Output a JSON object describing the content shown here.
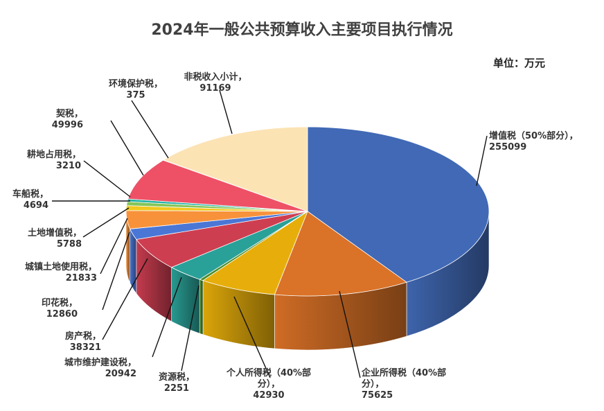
{
  "chart_data": {
    "type": "pie",
    "title": "2024年一般公共预算收入主要项目执行情况",
    "unit_label": "单位：万元",
    "slices": [
      {
        "name": "增值税（50%部分）",
        "label_lines": [
          "增值税（50%部分），",
          "255099"
        ],
        "value": 255099,
        "color": "#4169B5"
      },
      {
        "name": "企业所得税（40%部分）",
        "label_lines": [
          "企业所得税（40%部",
          "分），",
          "75625"
        ],
        "value": 75625,
        "color": "#DA7227"
      },
      {
        "name": "个人所得税（40%部分）",
        "label_lines": [
          "个人所得税（40%部",
          "分），",
          "42930"
        ],
        "value": 42930,
        "color": "#E7AE0B"
      },
      {
        "name": "资源税",
        "label_lines": [
          "资源税，",
          "2251"
        ],
        "value": 2251,
        "color": "#4A8E2E"
      },
      {
        "name": "城市维护建设税",
        "label_lines": [
          "城市维护建设税，",
          "20942"
        ],
        "value": 20942,
        "color": "#2AA198"
      },
      {
        "name": "房产税",
        "label_lines": [
          "房产税，",
          "38321"
        ],
        "value": 38321,
        "color": "#CE3E51"
      },
      {
        "name": "印花税",
        "label_lines": [
          "印花税，",
          "12860"
        ],
        "value": 12860,
        "color": "#4A77D6"
      },
      {
        "name": "城镇土地使用税",
        "label_lines": [
          "城镇土地使用税，",
          "21833"
        ],
        "value": 21833,
        "color": "#F7923A"
      },
      {
        "name": "土地增值税",
        "label_lines": [
          "土地增值税，",
          "5788"
        ],
        "value": 5788,
        "color": "#F2C81F"
      },
      {
        "name": "车船税",
        "label_lines": [
          "车船税，",
          "4694"
        ],
        "value": 4694,
        "color": "#84C55A"
      },
      {
        "name": "耕地占用税",
        "label_lines": [
          "耕地占用税，",
          "3210"
        ],
        "value": 3210,
        "color": "#25B3A7"
      },
      {
        "name": "契税",
        "label_lines": [
          "契税，",
          "49996"
        ],
        "value": 49996,
        "color": "#EE5166"
      },
      {
        "name": "环境保护税",
        "label_lines": [
          "环境保护税，",
          "375"
        ],
        "value": 375,
        "color": "#8AAEE8"
      },
      {
        "name": "非税收入小计",
        "label_lines": [
          "非税收入小计，",
          "91169"
        ],
        "value": 91169,
        "color": "#FCE3B4"
      }
    ]
  }
}
